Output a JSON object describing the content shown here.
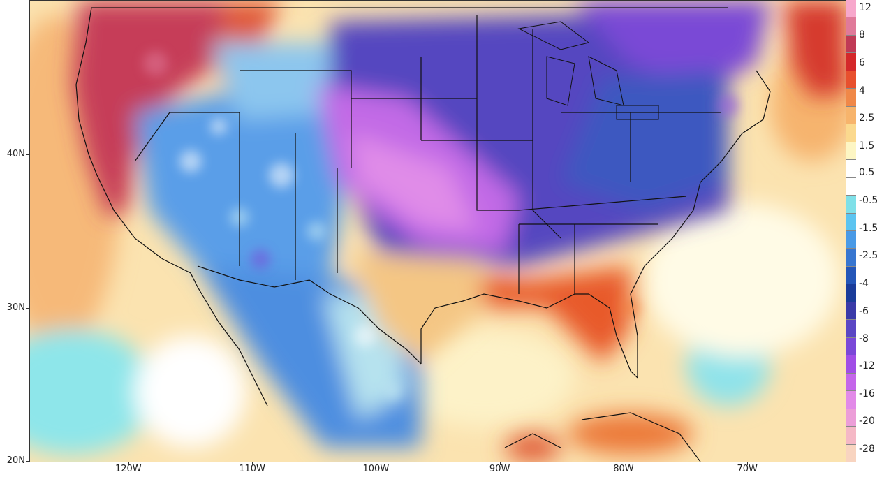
{
  "map": {
    "lat_labels": [
      {
        "text": "40N",
        "lat": 40
      },
      {
        "text": "30N",
        "lat": 30
      },
      {
        "text": "20N",
        "lat": 20
      }
    ],
    "lon_labels": [
      {
        "text": "120W",
        "lon": -120
      },
      {
        "text": "110W",
        "lon": -110
      },
      {
        "text": "100W",
        "lon": -100
      },
      {
        "text": "90W",
        "lon": -90
      },
      {
        "text": "80W",
        "lon": -80
      },
      {
        "text": "70W",
        "lon": -70
      }
    ],
    "extent": {
      "lon_min": -128,
      "lon_max": -62,
      "lat_min": 20,
      "lat_max": 50
    }
  },
  "colorbar": {
    "labels": [
      "12",
      "8",
      "6",
      "4",
      "2.5",
      "1.5",
      "0.5",
      "-0.5",
      "-1.5",
      "-2.5",
      "-4",
      "-6",
      "-8",
      "-12",
      "-16",
      "-20",
      "-28"
    ],
    "colors": [
      "#f7a8cc",
      "#e07a9a",
      "#c03a56",
      "#d4282a",
      "#e8502e",
      "#f08848",
      "#f7b46c",
      "#fbd98e",
      "#fdf6c4",
      "#ffffff",
      "#ffffff",
      "#7fe0e8",
      "#5cc4f0",
      "#4a9ae6",
      "#3876d0",
      "#2456b8",
      "#1a3c9a",
      "#3a3aa8",
      "#5a46c4",
      "#7a48d8",
      "#a04ee6",
      "#c466ea",
      "#e28ae8",
      "#ec9ed8",
      "#f5b8c6",
      "#f8d4c0"
    ]
  }
}
